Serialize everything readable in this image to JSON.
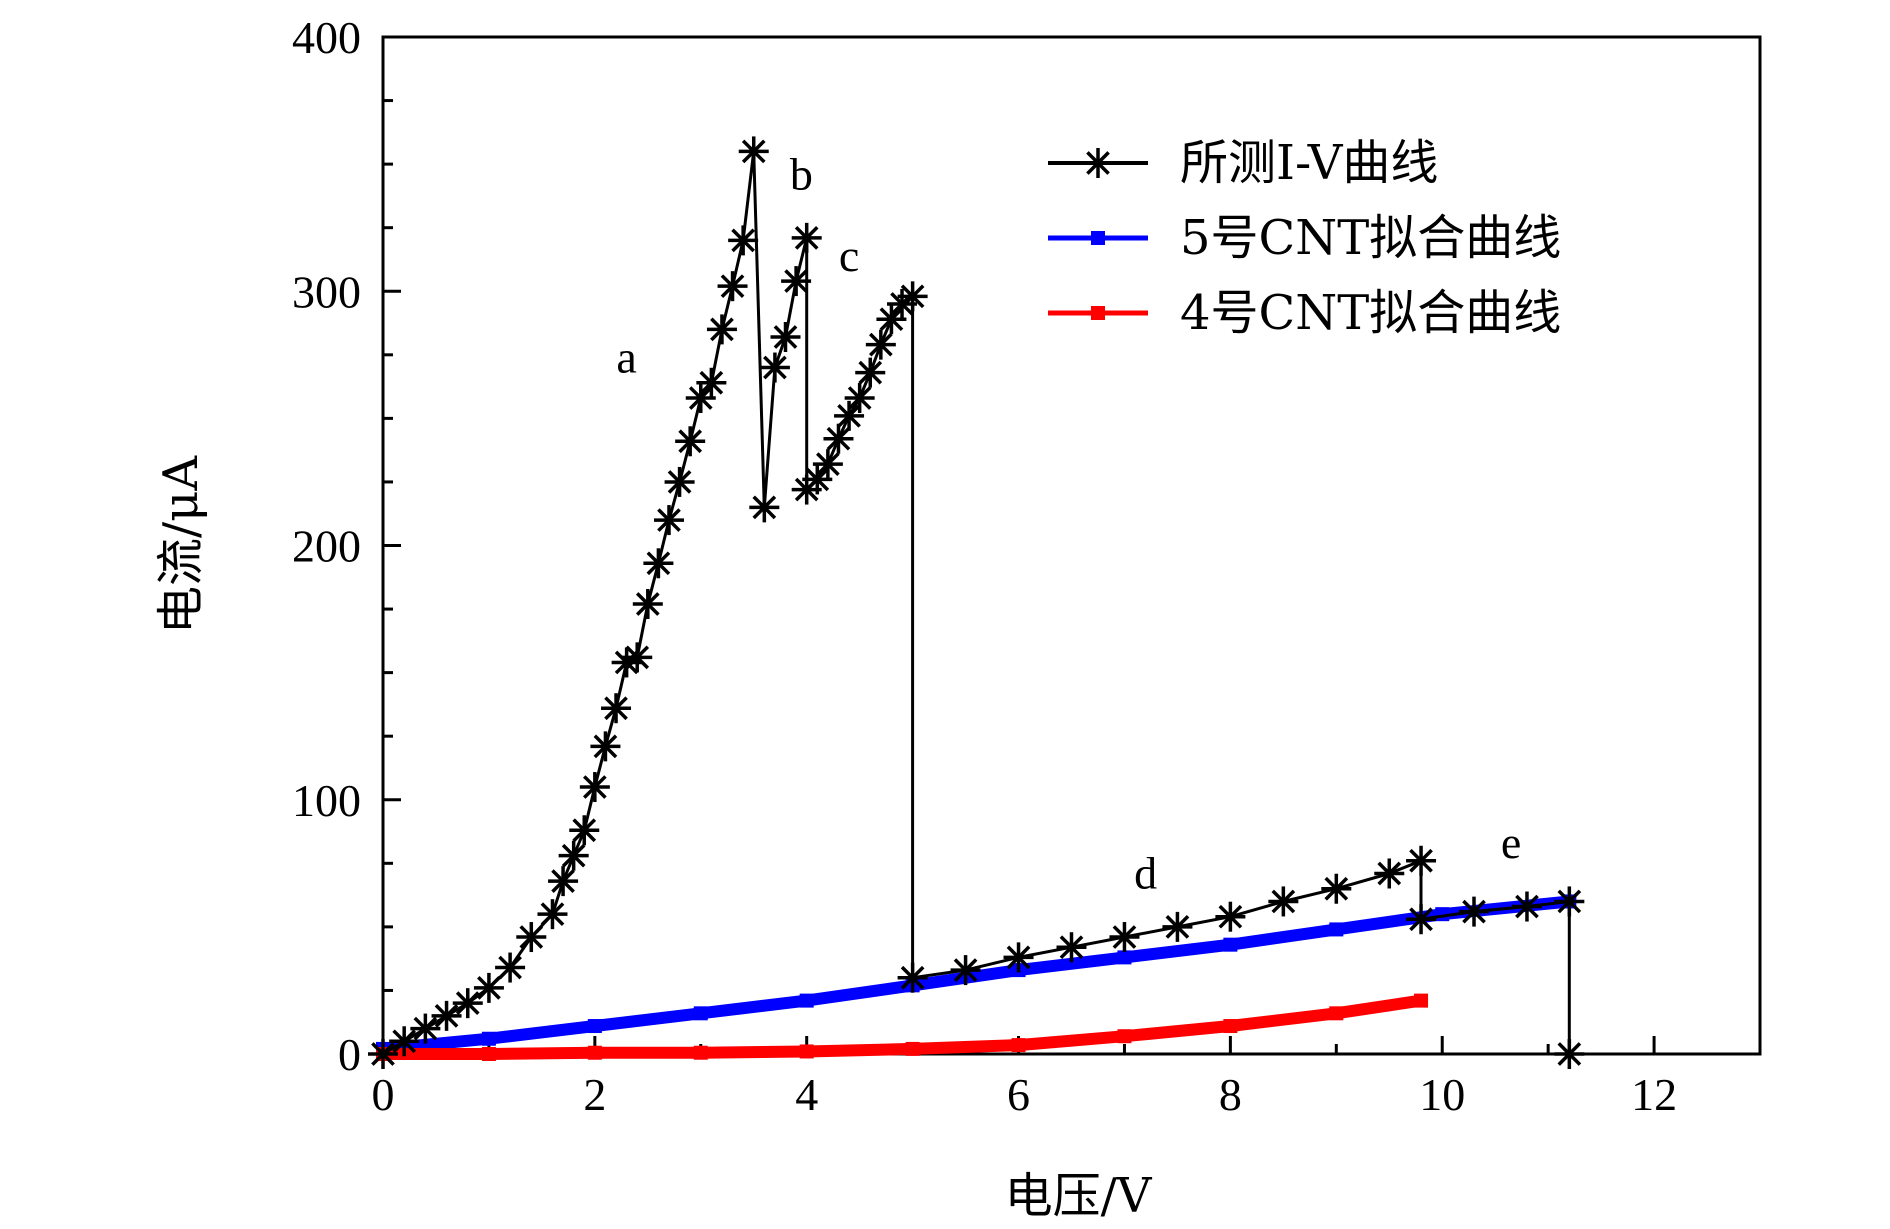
{
  "chart_data": {
    "type": "line",
    "xlabel": "电压/V",
    "ylabel": "电流/μA",
    "xlim": [
      0,
      13
    ],
    "ylim": [
      0,
      400
    ],
    "x_ticks": [
      0,
      2,
      4,
      6,
      8,
      10,
      12
    ],
    "y_ticks": [
      0,
      100,
      200,
      300,
      400
    ],
    "x_tick_labels": [
      "0",
      "2",
      "4",
      "6",
      "8",
      "10",
      "12"
    ],
    "y_tick_labels": [
      "0",
      "100",
      "200",
      "300",
      "400"
    ],
    "grid": false,
    "legend_position": "top-right",
    "series": [
      {
        "name": "所测I-V曲线",
        "color": "#000000",
        "marker": "asterisk",
        "points": [
          [
            0,
            0
          ],
          [
            0.2,
            5
          ],
          [
            0.4,
            10
          ],
          [
            0.6,
            15
          ],
          [
            0.8,
            20
          ],
          [
            1.0,
            26
          ],
          [
            1.2,
            34
          ],
          [
            1.4,
            46
          ],
          [
            1.6,
            55
          ],
          [
            1.7,
            68
          ],
          [
            1.8,
            78
          ],
          [
            1.9,
            88
          ],
          [
            2.0,
            105
          ],
          [
            2.1,
            121
          ],
          [
            2.2,
            136
          ],
          [
            2.3,
            154
          ],
          [
            2.4,
            156
          ],
          [
            2.5,
            177
          ],
          [
            2.6,
            193
          ],
          [
            2.7,
            210
          ],
          [
            2.8,
            225
          ],
          [
            2.9,
            241
          ],
          [
            3.0,
            258
          ],
          [
            3.1,
            264
          ],
          [
            3.2,
            285
          ],
          [
            3.3,
            302
          ],
          [
            3.4,
            320
          ],
          [
            3.5,
            355
          ],
          [
            3.6,
            215
          ],
          [
            3.7,
            270
          ],
          [
            3.8,
            282
          ],
          [
            3.9,
            304
          ],
          [
            4.0,
            321
          ],
          [
            4.0,
            222
          ],
          [
            4.1,
            226
          ],
          [
            4.2,
            232
          ],
          [
            4.3,
            242
          ],
          [
            4.4,
            251
          ],
          [
            4.5,
            258
          ],
          [
            4.6,
            268
          ],
          [
            4.7,
            279
          ],
          [
            4.8,
            289
          ],
          [
            4.9,
            295
          ],
          [
            5.0,
            298
          ],
          [
            5.0,
            30
          ],
          [
            5.5,
            33
          ],
          [
            6.0,
            38
          ],
          [
            6.5,
            42
          ],
          [
            7.0,
            46
          ],
          [
            7.5,
            50
          ],
          [
            8.0,
            54
          ],
          [
            8.5,
            60
          ],
          [
            9.0,
            65
          ],
          [
            9.5,
            71
          ],
          [
            9.8,
            76
          ],
          [
            9.8,
            53
          ],
          [
            10.3,
            56
          ],
          [
            10.8,
            58
          ],
          [
            11.2,
            60
          ],
          [
            11.2,
            0
          ]
        ]
      },
      {
        "name": "5号CNT拟合曲线",
        "color": "#0000ff",
        "marker": "square",
        "points": [
          [
            0,
            2
          ],
          [
            1,
            6
          ],
          [
            2,
            11
          ],
          [
            3,
            16
          ],
          [
            4,
            21
          ],
          [
            5,
            27
          ],
          [
            6,
            33
          ],
          [
            7,
            38
          ],
          [
            8,
            43
          ],
          [
            9,
            49
          ],
          [
            10,
            55
          ],
          [
            11.2,
            60
          ]
        ]
      },
      {
        "name": "4号CNT拟合曲线",
        "color": "#ff0000",
        "marker": "square",
        "points": [
          [
            0,
            0
          ],
          [
            1,
            0
          ],
          [
            2,
            0.5
          ],
          [
            3,
            0.5
          ],
          [
            4,
            1
          ],
          [
            5,
            2
          ],
          [
            6,
            3.5
          ],
          [
            7,
            7
          ],
          [
            8,
            11
          ],
          [
            9,
            16
          ],
          [
            9.8,
            21
          ]
        ]
      }
    ],
    "annotations": [
      {
        "text": "a",
        "x": 2.3,
        "y": 268
      },
      {
        "text": "b",
        "x": 3.95,
        "y": 340
      },
      {
        "text": "c",
        "x": 4.4,
        "y": 308
      },
      {
        "text": "d",
        "x": 7.2,
        "y": 65
      },
      {
        "text": "e",
        "x": 10.65,
        "y": 77
      }
    ]
  }
}
